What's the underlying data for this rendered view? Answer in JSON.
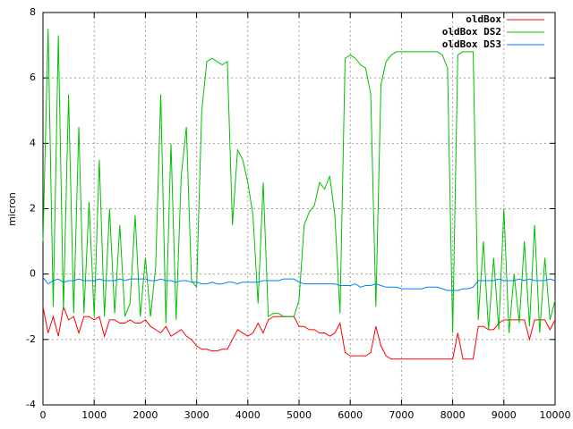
{
  "chart_data": {
    "type": "line",
    "ylabel": "micron",
    "x": [
      0,
      100,
      200,
      300,
      400,
      500,
      600,
      700,
      800,
      900,
      1000,
      1100,
      1200,
      1300,
      1400,
      1500,
      1600,
      1700,
      1800,
      1900,
      2000,
      2100,
      2200,
      2300,
      2400,
      2500,
      2600,
      2700,
      2800,
      2900,
      3000,
      3100,
      3200,
      3300,
      3400,
      3500,
      3600,
      3700,
      3800,
      3900,
      4000,
      4100,
      4200,
      4300,
      4400,
      4500,
      4600,
      4700,
      4800,
      4900,
      5000,
      5100,
      5200,
      5300,
      5400,
      5500,
      5600,
      5700,
      5800,
      5900,
      6000,
      6100,
      6200,
      6300,
      6400,
      6500,
      6600,
      6700,
      6800,
      6900,
      7000,
      7100,
      7200,
      7300,
      7400,
      7500,
      7600,
      7700,
      7800,
      7900,
      8000,
      8100,
      8200,
      8300,
      8400,
      8500,
      8600,
      8700,
      8800,
      8900,
      9000,
      9100,
      9200,
      9300,
      9400,
      9500,
      9600,
      9700,
      9800,
      9900,
      10000
    ],
    "series": [
      {
        "name": "oldBox",
        "color": "#ff0000",
        "values": [
          -1.0,
          -1.8,
          -1.3,
          -1.9,
          -1.0,
          -1.4,
          -1.3,
          -1.8,
          -1.3,
          -1.3,
          -1.4,
          -1.3,
          -1.9,
          -1.4,
          -1.4,
          -1.5,
          -1.5,
          -1.4,
          -1.5,
          -1.5,
          -1.4,
          -1.6,
          -1.7,
          -1.8,
          -1.6,
          -1.9,
          -1.8,
          -1.7,
          -1.9,
          -2.0,
          -2.2,
          -2.3,
          -2.3,
          -2.35,
          -2.35,
          -2.3,
          -2.3,
          -2.0,
          -1.7,
          -1.8,
          -1.9,
          -1.8,
          -1.5,
          -1.8,
          -1.4,
          -1.3,
          -1.3,
          -1.3,
          -1.3,
          -1.3,
          -1.6,
          -1.6,
          -1.7,
          -1.7,
          -1.8,
          -1.8,
          -1.9,
          -1.8,
          -1.5,
          -2.4,
          -2.5,
          -2.5,
          -2.5,
          -2.5,
          -2.4,
          -1.6,
          -2.2,
          -2.5,
          -2.6,
          -2.6,
          -2.6,
          -2.6,
          -2.6,
          -2.6,
          -2.6,
          -2.6,
          -2.6,
          -2.6,
          -2.6,
          -2.6,
          -2.6,
          -1.8,
          -2.6,
          -2.6,
          -2.6,
          -1.6,
          -1.6,
          -1.7,
          -1.7,
          -1.5,
          -1.4,
          -1.4,
          -1.4,
          -1.4,
          -1.4,
          -2.0,
          -1.4,
          -1.4,
          -1.4,
          -1.7,
          -1.4
        ]
      },
      {
        "name": "oldBox DS2",
        "color": "#00c000",
        "values": [
          1.0,
          7.5,
          -1.0,
          7.3,
          -1.1,
          5.5,
          -1.2,
          4.5,
          -1.2,
          2.2,
          -1.3,
          3.5,
          -1.3,
          2.0,
          -1.2,
          1.5,
          -1.3,
          -0.9,
          1.8,
          -1.3,
          0.5,
          -1.3,
          0.2,
          5.5,
          -1.5,
          4.0,
          -1.4,
          3.0,
          4.5,
          -0.2,
          -0.4,
          5.0,
          6.5,
          6.6,
          6.5,
          6.4,
          6.5,
          1.5,
          3.8,
          3.5,
          2.8,
          1.8,
          -0.9,
          2.8,
          -1.3,
          -1.2,
          -1.2,
          -1.3,
          -1.3,
          -1.3,
          -0.8,
          1.5,
          1.9,
          2.1,
          2.8,
          2.6,
          3.0,
          1.8,
          -1.2,
          6.6,
          6.7,
          6.6,
          6.4,
          6.3,
          5.5,
          -1.0,
          5.8,
          6.5,
          6.7,
          6.8,
          6.8,
          6.8,
          6.8,
          6.8,
          6.8,
          6.8,
          6.8,
          6.8,
          6.7,
          6.3,
          -1.8,
          6.7,
          6.8,
          6.8,
          6.8,
          -1.4,
          1.0,
          -1.7,
          0.5,
          -1.7,
          2.0,
          -1.8,
          0.0,
          -1.5,
          1.0,
          -1.6,
          1.5,
          -1.8,
          0.5,
          -1.4,
          -0.8
        ]
      },
      {
        "name": "oldBox DS3",
        "color": "#0080ff",
        "values": [
          -0.1,
          -0.3,
          -0.2,
          -0.15,
          -0.25,
          -0.2,
          -0.2,
          -0.15,
          -0.2,
          -0.2,
          -0.2,
          -0.15,
          -0.2,
          -0.2,
          -0.2,
          -0.15,
          -0.2,
          -0.15,
          -0.15,
          -0.15,
          -0.15,
          -0.2,
          -0.2,
          -0.15,
          -0.2,
          -0.2,
          -0.25,
          -0.2,
          -0.2,
          -0.25,
          -0.25,
          -0.3,
          -0.3,
          -0.25,
          -0.3,
          -0.3,
          -0.25,
          -0.25,
          -0.3,
          -0.25,
          -0.25,
          -0.25,
          -0.25,
          -0.2,
          -0.2,
          -0.2,
          -0.2,
          -0.15,
          -0.15,
          -0.15,
          -0.25,
          -0.3,
          -0.3,
          -0.3,
          -0.3,
          -0.3,
          -0.3,
          -0.3,
          -0.35,
          -0.35,
          -0.35,
          -0.3,
          -0.4,
          -0.35,
          -0.35,
          -0.3,
          -0.35,
          -0.4,
          -0.4,
          -0.4,
          -0.45,
          -0.45,
          -0.45,
          -0.45,
          -0.45,
          -0.4,
          -0.4,
          -0.4,
          -0.45,
          -0.5,
          -0.5,
          -0.5,
          -0.45,
          -0.45,
          -0.4,
          -0.2,
          -0.2,
          -0.2,
          -0.2,
          -0.15,
          -0.2,
          -0.2,
          -0.2,
          -0.15,
          -0.2,
          -0.15,
          -0.2,
          -0.2,
          -0.2,
          -0.15,
          -0.2
        ]
      }
    ],
    "xlim": [
      0,
      10000
    ],
    "xticks": [
      0,
      1000,
      2000,
      3000,
      4000,
      5000,
      6000,
      7000,
      8000,
      9000,
      10000
    ],
    "ylim": [
      -4,
      8
    ],
    "yticks": [
      -4,
      -2,
      0,
      2,
      4,
      6,
      8
    ],
    "grid": true,
    "legend": "top-right"
  }
}
